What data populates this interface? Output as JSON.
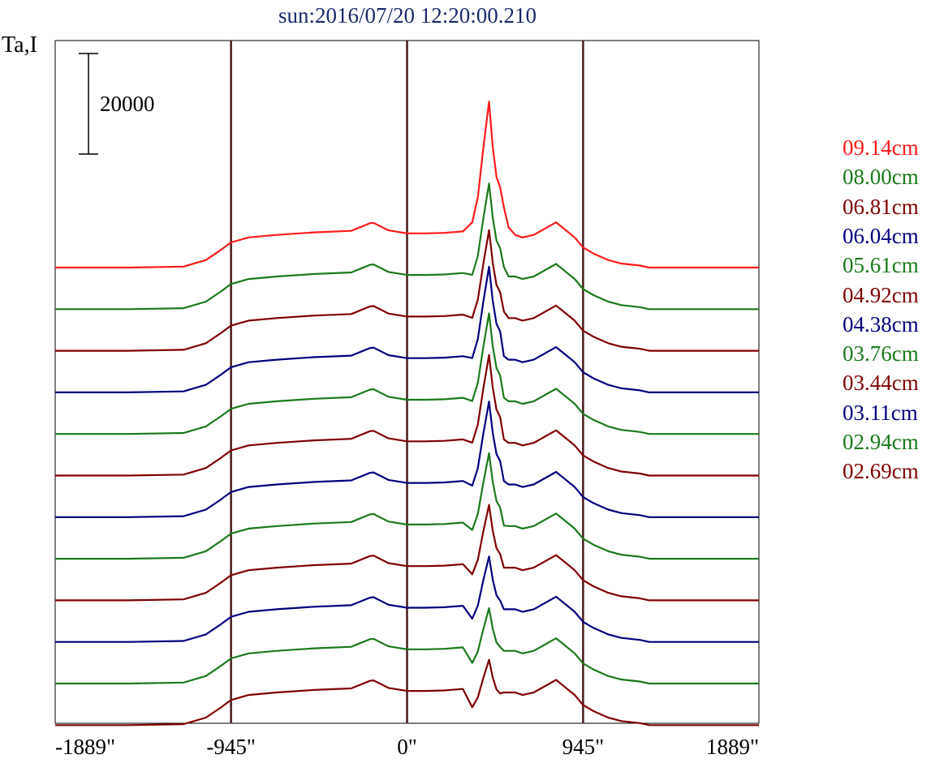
{
  "title": "sun:2016/07/20 12:20:00.210",
  "ylabel": "Ta,I",
  "scale_bar_label": "20000",
  "chart_data": {
    "type": "line",
    "title": "sun:2016/07/20 12:20:00.210",
    "ylabel": "Ta,I",
    "xlabel": "",
    "xlim": [
      -1889,
      1889
    ],
    "x_ticks": [
      "-1889\"",
      "-945\"",
      "0\"",
      "945\"",
      "1889\""
    ],
    "x_tick_values": [
      -1889,
      -945,
      0,
      945,
      1889
    ],
    "vertical_lines": [
      -945,
      0,
      945
    ],
    "scale_bar": 20000,
    "legend_placement": "right",
    "grid": false,
    "x": [
      -1889,
      -1750,
      -1500,
      -1200,
      -1080,
      -1000,
      -945,
      -850,
      -700,
      -500,
      -300,
      -200,
      -180,
      -100,
      0,
      100,
      200,
      300,
      350,
      380,
      410,
      440,
      460,
      480,
      500,
      520,
      545,
      580,
      620,
      680,
      800,
      850,
      900,
      945,
      1000,
      1080,
      1150,
      1250,
      1300,
      1500,
      1700,
      1889
    ],
    "profile_shape": [
      0,
      0,
      0,
      200,
      1500,
      3500,
      5000,
      6000,
      6500,
      7000,
      7300,
      8800,
      8900,
      7400,
      6800,
      6800,
      6900,
      7200,
      9000,
      14000,
      24000,
      33000,
      24000,
      18000,
      16000,
      12000,
      8000,
      6500,
      6000,
      6500,
      9000,
      7500,
      6000,
      4000,
      2800,
      1500,
      800,
      400,
      0,
      0,
      0,
      0
    ],
    "series": [
      {
        "name": "09.14cm",
        "color": "#ff1a1a",
        "peak": 33000,
        "second_peak": 20000
      },
      {
        "name": "08.00cm",
        "color": "#1a7a1a",
        "peak": 25000,
        "second_peak": 14000
      },
      {
        "name": "06.81cm",
        "color": "#800000",
        "peak": 24000,
        "second_peak": 13000
      },
      {
        "name": "06.04cm",
        "color": "#00007f",
        "peak": 25000,
        "second_peak": 12000
      },
      {
        "name": "05.61cm",
        "color": "#1a7a1a",
        "peak": 24000,
        "second_peak": 12000
      },
      {
        "name": "04.92cm",
        "color": "#800000",
        "peak": 24000,
        "second_peak": 12000
      },
      {
        "name": "04.38cm",
        "color": "#00007f",
        "peak": 23000,
        "second_peak": 12000
      },
      {
        "name": "03.76cm",
        "color": "#1a7a1a",
        "peak": 21000,
        "second_peak": 11000
      },
      {
        "name": "03.44cm",
        "color": "#800000",
        "peak": 19000,
        "second_peak": 10000
      },
      {
        "name": "03.11cm",
        "color": "#00007f",
        "peak": 17000,
        "second_peak": 8000
      },
      {
        "name": "02.94cm",
        "color": "#1a7a1a",
        "peak": 15000,
        "second_peak": 6000
      },
      {
        "name": "02.69cm",
        "color": "#800000",
        "peak": 13000,
        "second_peak": 5000
      }
    ]
  }
}
